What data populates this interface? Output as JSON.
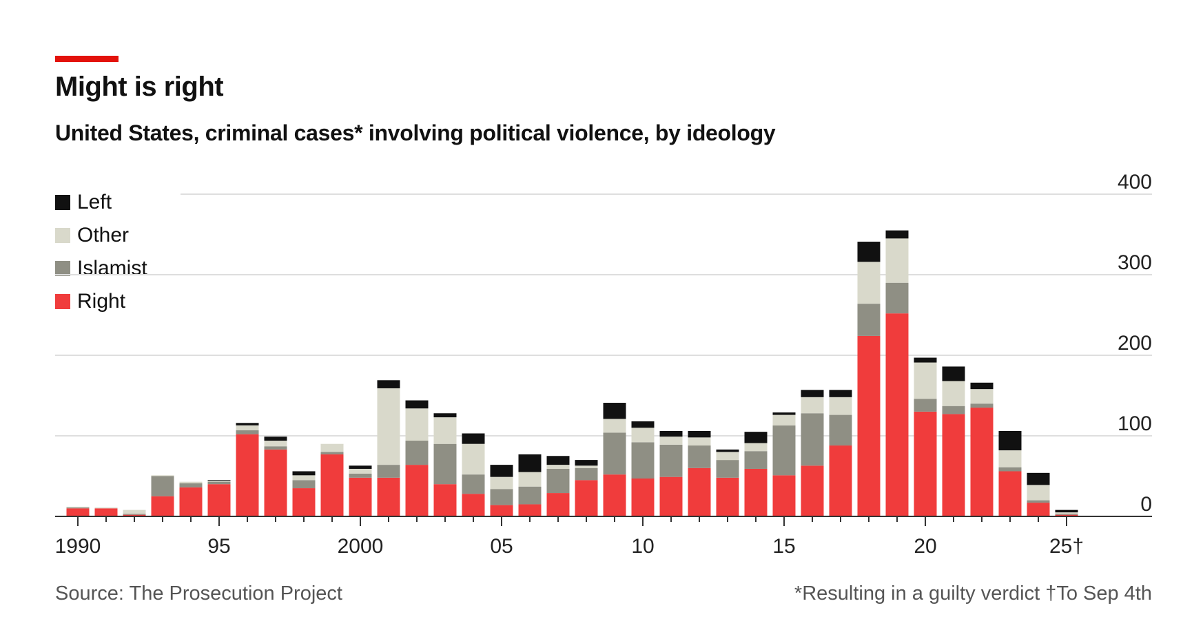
{
  "title": "Might is right",
  "subtitle": "United States, criminal cases* involving political violence, by ideology",
  "source": "Source: The Prosecution Project",
  "note": "*Resulting in a guilty verdict †To Sep 4th",
  "colors": {
    "accent": "#e3120b",
    "Left": "#111111",
    "Other": "#d9d9cb",
    "Islamist": "#8f8f84",
    "Right": "#f03c3c"
  },
  "chart_data": {
    "type": "bar",
    "stacked": true,
    "categories": [
      "1990",
      "1991",
      "1992",
      "1993",
      "1994",
      "1995",
      "1996",
      "1997",
      "1998",
      "1999",
      "2000",
      "2001",
      "2002",
      "2003",
      "2004",
      "2005",
      "2006",
      "2007",
      "2008",
      "2009",
      "2010",
      "2011",
      "2012",
      "2013",
      "2014",
      "2015",
      "2016",
      "2017",
      "2018",
      "2019",
      "2020",
      "2021",
      "2022",
      "2023",
      "2024",
      "2025"
    ],
    "series": [
      {
        "name": "Right",
        "values": [
          10,
          10,
          2,
          25,
          36,
          40,
          102,
          83,
          35,
          77,
          48,
          48,
          64,
          40,
          28,
          14,
          15,
          29,
          45,
          52,
          47,
          49,
          60,
          48,
          59,
          51,
          63,
          88,
          224,
          252,
          130,
          127,
          135,
          56,
          17,
          2
        ]
      },
      {
        "name": "Islamist",
        "values": [
          1,
          0,
          1,
          25,
          5,
          3,
          5,
          4,
          10,
          3,
          5,
          16,
          30,
          50,
          24,
          20,
          22,
          30,
          15,
          52,
          45,
          40,
          28,
          22,
          22,
          62,
          65,
          38,
          40,
          38,
          16,
          10,
          5,
          5,
          3,
          1
        ]
      },
      {
        "name": "Other",
        "values": [
          1,
          1,
          5,
          1,
          2,
          1,
          6,
          7,
          6,
          10,
          6,
          95,
          40,
          33,
          38,
          15,
          18,
          5,
          3,
          17,
          18,
          10,
          10,
          10,
          10,
          13,
          20,
          22,
          52,
          55,
          45,
          31,
          18,
          21,
          19,
          2
        ]
      },
      {
        "name": "Left",
        "values": [
          0,
          0,
          0,
          0,
          0,
          1,
          3,
          5,
          5,
          0,
          4,
          10,
          10,
          5,
          13,
          15,
          22,
          11,
          7,
          20,
          8,
          7,
          8,
          3,
          14,
          3,
          9,
          9,
          25,
          10,
          6,
          18,
          8,
          24,
          15,
          3
        ]
      }
    ],
    "ylim": [
      0,
      400
    ],
    "yticks": [
      "400",
      "300",
      "200",
      "100",
      "0"
    ],
    "xtick_labels": [
      "1990",
      "95",
      "2000",
      "05",
      "10",
      "15",
      "20",
      "25†"
    ],
    "legend": [
      "Left",
      "Other",
      "Islamist",
      "Right"
    ],
    "legend_position": "top-left",
    "grid": true
  }
}
